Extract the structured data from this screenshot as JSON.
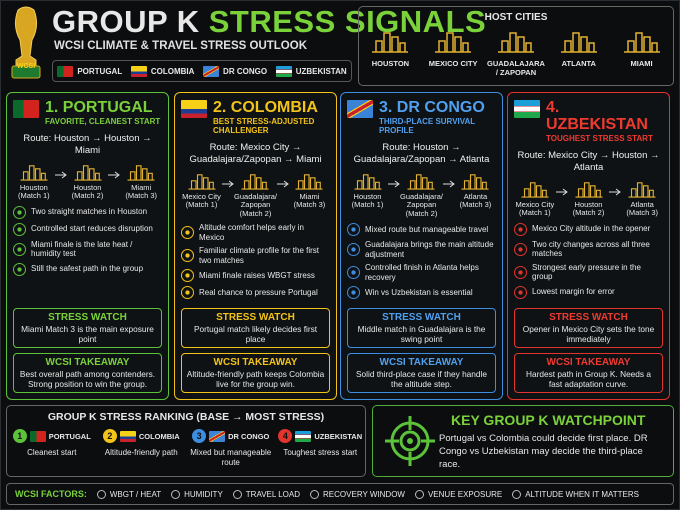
{
  "header": {
    "title_main": "GROUP K",
    "title_accent": "STRESS SIGNALS",
    "subtitle": "WCSI CLIMATE & TRAVEL STRESS OUTLOOK",
    "trophy_label": "WCSI",
    "teams": [
      "PORTUGAL",
      "COLOMBIA",
      "DR CONGO",
      "UZBEKISTAN"
    ]
  },
  "host_cities": {
    "title": "HOST CITIES",
    "cities": [
      "HOUSTON",
      "MEXICO CITY",
      "GUADALAJARA / ZAPOPAN",
      "ATLANTA",
      "MIAMI"
    ]
  },
  "cards": [
    {
      "title": "1. PORTUGAL",
      "subtitle": "FAVORITE, CLEANEST START",
      "route": "Route: Houston → Houston → Miami",
      "stops": [
        {
          "city": "Houston",
          "match": "(Match 1)"
        },
        {
          "city": "Houston",
          "match": "(Match 2)"
        },
        {
          "city": "Miami",
          "match": "(Match 3)"
        }
      ],
      "points": [
        "Two straight matches in Houston",
        "Controlled start reduces disruption",
        "Miami finale is the late heat / humidity test",
        "Still the safest path in the group"
      ],
      "watch_title": "STRESS WATCH",
      "watch_text": "Miami Match 3 is the main exposure point",
      "takeaway_title": "WCSI TAKEAWAY",
      "takeaway_text": "Best overall path among contenders. Strong position to win the group."
    },
    {
      "title": "2. COLOMBIA",
      "subtitle": "BEST STRESS-ADJUSTED CHALLENGER",
      "route": "Route: Mexico City → Guadalajara/Zapopan → Miami",
      "stops": [
        {
          "city": "Mexico City",
          "match": "(Match 1)"
        },
        {
          "city": "Guadalajara/ Zapopan",
          "match": "(Match 2)"
        },
        {
          "city": "Miami",
          "match": "(Match 3)"
        }
      ],
      "points": [
        "Altitude comfort helps early in Mexico",
        "Familiar climate profile for the first two matches",
        "Miami finale raises WBGT stress",
        "Real chance to pressure Portugal"
      ],
      "watch_title": "STRESS WATCH",
      "watch_text": "Portugal match likely decides first place",
      "takeaway_title": "WCSI TAKEAWAY",
      "takeaway_text": "Altitude-friendly path keeps Colombia live for the group win."
    },
    {
      "title": "3. DR CONGO",
      "subtitle": "THIRD-PLACE SURVIVAL PROFILE",
      "route": "Route: Houston → Guadalajara/Zapopan → Atlanta",
      "stops": [
        {
          "city": "Houston",
          "match": "(Match 1)"
        },
        {
          "city": "Guadalajara/ Zapopan",
          "match": "(Match 2)"
        },
        {
          "city": "Atlanta",
          "match": "(Match 3)"
        }
      ],
      "points": [
        "Mixed route but manageable travel",
        "Guadalajara brings the main altitude adjustment",
        "Controlled finish in Atlanta helps recovery",
        "Win vs Uzbekistan is essential"
      ],
      "watch_title": "STRESS WATCH",
      "watch_text": "Middle match in Guadalajara is the swing point",
      "takeaway_title": "WCSI TAKEAWAY",
      "takeaway_text": "Solid third-place case if they handle the altitude step."
    },
    {
      "title": "4. UZBEKISTAN",
      "subtitle": "TOUGHEST STRESS START",
      "route": "Route: Mexico City → Houston → Atlanta",
      "stops": [
        {
          "city": "Mexico City",
          "match": "(Match 1)"
        },
        {
          "city": "Houston",
          "match": "(Match 2)"
        },
        {
          "city": "Atlanta",
          "match": "(Match 3)"
        }
      ],
      "points": [
        "Mexico City altitude in the opener",
        "Two city changes across all three matches",
        "Strongest early pressure in the group",
        "Lowest margin for error"
      ],
      "watch_title": "STRESS WATCH",
      "watch_text": "Opener in Mexico City sets the tone immediately",
      "takeaway_title": "WCSI TAKEAWAY",
      "takeaway_text": "Hardest path in Group K. Needs a fast adaptation curve."
    }
  ],
  "ranking": {
    "title": "GROUP K STRESS RANKING (BASE → MOST STRESS)",
    "items": [
      {
        "rank": "1",
        "team": "PORTUGAL",
        "note": "Cleanest start"
      },
      {
        "rank": "2",
        "team": "COLOMBIA",
        "note": "Altitude-friendly path"
      },
      {
        "rank": "3",
        "team": "DR CONGO",
        "note": "Mixed but manageable route"
      },
      {
        "rank": "4",
        "team": "UZBEKISTAN",
        "note": "Toughest stress start"
      }
    ]
  },
  "watchpoint": {
    "title": "KEY GROUP K WATCHPOINT",
    "text": "Portugal vs Colombia could decide first place. DR Congo vs Uzbekistan may decide the third-place race."
  },
  "footer": {
    "label": "WCSI FACTORS:",
    "factors": [
      "WBGT / HEAT",
      "HUMIDITY",
      "TRAVEL LOAD",
      "RECOVERY WINDOW",
      "VENUE EXPOSURE",
      "ALTITUDE WHEN IT MATTERS"
    ]
  }
}
